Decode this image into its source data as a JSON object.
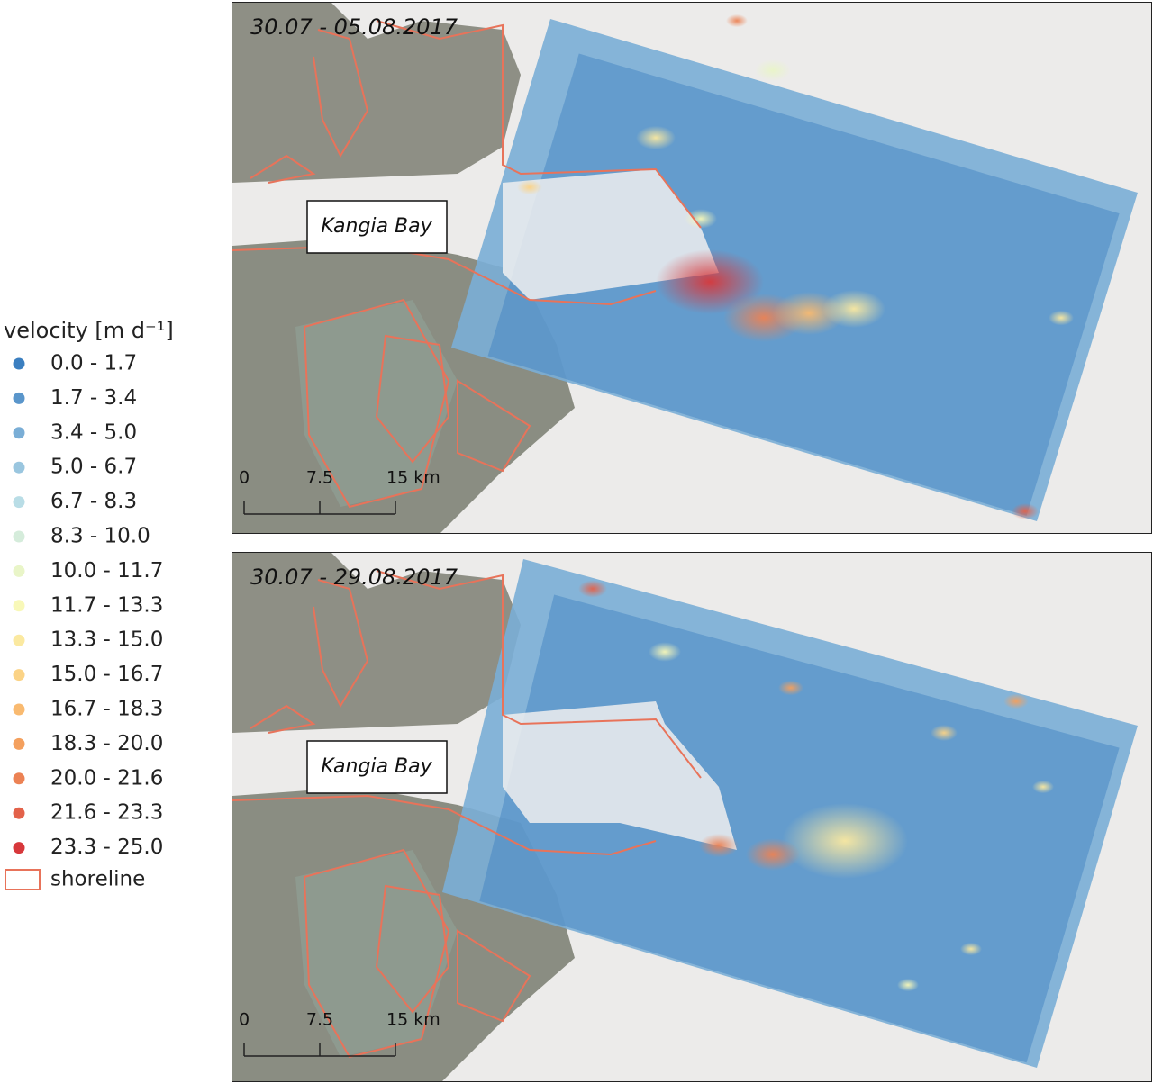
{
  "legend": {
    "title": "velocity [m d⁻¹]",
    "items": [
      {
        "label": "0.0 - 1.7",
        "color": "#3b7fc0"
      },
      {
        "label": "1.7 - 3.4",
        "color": "#5a96cb"
      },
      {
        "label": "3.4 - 5.0",
        "color": "#7aaed6"
      },
      {
        "label": "5.0 - 6.7",
        "color": "#9ac6df"
      },
      {
        "label": "6.7 - 8.3",
        "color": "#b9dde6"
      },
      {
        "label": "8.3 - 10.0",
        "color": "#d5ecdb"
      },
      {
        "label": "10.0 - 11.7",
        "color": "#e9f5c8"
      },
      {
        "label": "11.7 - 13.3",
        "color": "#f8f8b8"
      },
      {
        "label": "13.3 - 15.0",
        "color": "#fbe9a0"
      },
      {
        "label": "15.0 - 16.7",
        "color": "#fbd386"
      },
      {
        "label": "16.7 - 18.3",
        "color": "#f9ba70"
      },
      {
        "label": "18.3 - 20.0",
        "color": "#f4a05e"
      },
      {
        "label": "20.0 - 21.6",
        "color": "#ec8254"
      },
      {
        "label": "21.6 - 23.3",
        "color": "#e3624a"
      },
      {
        "label": "23.3 - 25.0",
        "color": "#d7383b"
      }
    ],
    "shoreline": {
      "label": "shoreline",
      "color": "#e8735a"
    }
  },
  "panels": [
    {
      "title": "30.07 - 05.08.2017",
      "place_label": "Kangia Bay",
      "scale_labels": [
        "0",
        "7.5",
        "15 km"
      ]
    },
    {
      "title": "30.07 - 29.08.2017",
      "place_label": "Kangia Bay",
      "scale_labels": [
        "0",
        "7.5",
        "15 km"
      ]
    }
  ]
}
